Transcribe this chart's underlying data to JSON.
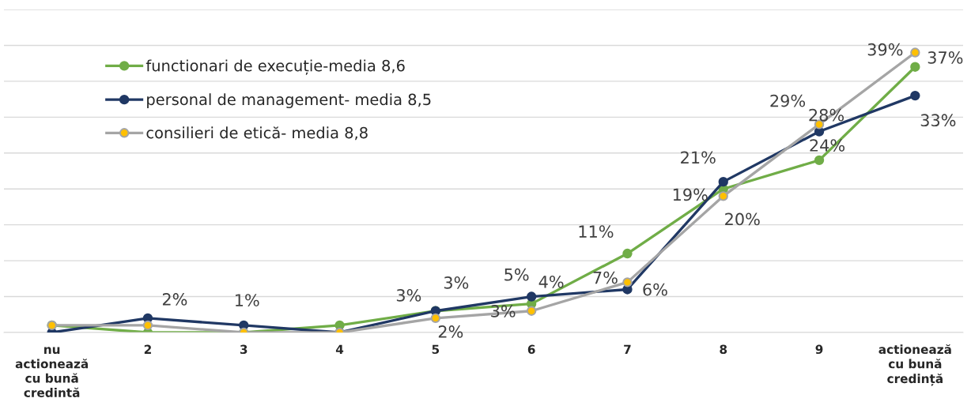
{
  "chart_data": {
    "type": "line",
    "categories": [
      "nu\nactionează\ncu bună\ncredintă",
      "2",
      "3",
      "4",
      "5",
      "6",
      "7",
      "8",
      "9",
      "actionează\ncu bună\ncredință"
    ],
    "series": [
      {
        "name": "functionari de execuție-media 8,6",
        "color": "#70ad47",
        "values": [
          1,
          0,
          0,
          1,
          3,
          4,
          11,
          20,
          24,
          37
        ],
        "value_labels": [
          null,
          null,
          null,
          null,
          "3%",
          "4%",
          "11%",
          "20%",
          "24%",
          "37%"
        ]
      },
      {
        "name": "personal de management- media 8,5",
        "color": "#203864",
        "values": [
          0,
          2,
          1,
          0,
          3,
          5,
          6,
          21,
          28,
          33
        ],
        "value_labels": [
          null,
          "2%",
          "1%",
          null,
          "3%",
          "5%",
          "6%",
          "21%",
          "28%",
          "33%"
        ]
      },
      {
        "name": "consilieri de etică- media 8,8",
        "color": "#a5a5a5",
        "colors": [
          "#ffc000",
          "#ffc000",
          "#ffc000",
          "#ffc000",
          "#ffc000",
          "#ffc000",
          "#ffc000",
          "#ffc000",
          "#ffc000",
          "#ffc000"
        ],
        "values": [
          1,
          1,
          0,
          0,
          2,
          3,
          7,
          19,
          29,
          39
        ],
        "value_labels": [
          null,
          null,
          null,
          null,
          "2%",
          "3%",
          "7%",
          "19%",
          "29%",
          "39%"
        ]
      }
    ],
    "ylim": [
      0,
      45
    ],
    "yticks": [
      0,
      5,
      10,
      15,
      20,
      25,
      30,
      35,
      40,
      45
    ],
    "tick_labels": "x",
    "grid": "y",
    "legend": "top left",
    "marker": "circle",
    "line_style": "solid"
  }
}
